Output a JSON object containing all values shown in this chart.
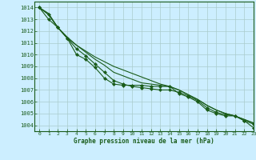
{
  "xlabel": "Graphe pression niveau de la mer (hPa)",
  "ylim": [
    1003.5,
    1014.5
  ],
  "xlim": [
    -0.5,
    23
  ],
  "yticks": [
    1004,
    1005,
    1006,
    1007,
    1008,
    1009,
    1010,
    1011,
    1012,
    1013,
    1014
  ],
  "xticks": [
    0,
    1,
    2,
    3,
    4,
    5,
    6,
    7,
    8,
    9,
    10,
    11,
    12,
    13,
    14,
    15,
    16,
    17,
    18,
    19,
    20,
    21,
    22,
    23
  ],
  "bg_color": "#cceeff",
  "grid_color": "#aacccc",
  "line_color": "#1a5c1a",
  "series": [
    [
      1014,
      1013.4,
      1012.3,
      1011.4,
      1010.0,
      1009.6,
      1008.9,
      1008.0,
      1007.5,
      1007.4,
      1007.4,
      1007.4,
      1007.3,
      1007.3,
      1007.3,
      1006.7,
      1006.4,
      1006.0,
      1005.3,
      1005.0,
      1004.8,
      1004.8,
      1004.4,
      1003.8
    ],
    [
      1014,
      1013.4,
      1012.3,
      1011.4,
      1010.8,
      1010.2,
      1009.6,
      1009.1,
      1008.5,
      1008.2,
      1007.9,
      1007.6,
      1007.5,
      1007.4,
      1007.3,
      1007.0,
      1006.6,
      1006.2,
      1005.7,
      1005.3,
      1005.0,
      1004.8,
      1004.5,
      1004.2
    ],
    [
      1014,
      1013.0,
      1012.3,
      1011.4,
      1010.5,
      1009.9,
      1009.2,
      1008.5,
      1007.8,
      1007.5,
      1007.3,
      1007.2,
      1007.1,
      1007.0,
      1007.0,
      1006.8,
      1006.5,
      1006.1,
      1005.5,
      1005.1,
      1004.9,
      1004.8,
      1004.4,
      1004.1
    ],
    [
      1014,
      1013.5,
      1012.3,
      1011.5,
      1010.8,
      1010.3,
      1009.8,
      1009.4,
      1009.0,
      1008.7,
      1008.4,
      1008.1,
      1007.8,
      1007.5,
      1007.3,
      1007.0,
      1006.6,
      1006.2,
      1005.7,
      1005.3,
      1005.0,
      1004.8,
      1004.5,
      1004.2
    ]
  ],
  "marker_series": [
    0,
    2
  ],
  "marker": "D",
  "marker_size": 2.0,
  "lw": 0.8
}
